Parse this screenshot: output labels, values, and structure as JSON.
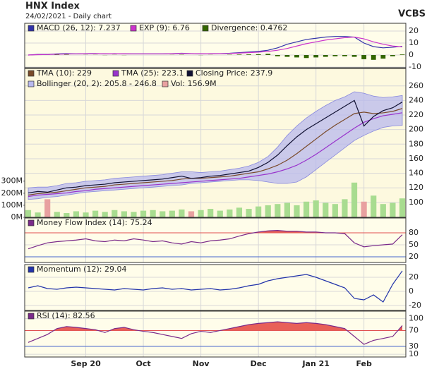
{
  "header": {
    "title": "HNX Index",
    "subtitle": "24/02/2021 - Daily chart",
    "brand": "VCBS"
  },
  "chart_data": [
    {
      "type": "line",
      "ylim": [
        -10.6,
        26.5
      ],
      "yticks": [
        20,
        10,
        0,
        -10
      ],
      "grid": true,
      "series": [
        {
          "name": "MACD (26, 12): 7.237",
          "color": "#3333aa",
          "style": "line",
          "values": [
            0,
            0.5,
            0.5,
            1,
            1.2,
            1,
            1.2,
            1.3,
            1,
            1.2,
            1,
            1,
            1,
            1,
            1,
            1.2,
            1.5,
            1.2,
            1,
            1.2,
            1.2,
            1.5,
            2,
            2.5,
            3,
            4,
            6,
            9,
            11,
            13,
            14,
            15,
            15.5,
            15.5,
            15,
            10,
            7,
            6,
            6.5,
            7.237
          ]
        },
        {
          "name": "EXP (9): 6.76",
          "color": "#cc33cc",
          "style": "line",
          "values": [
            0,
            0.3,
            0.4,
            0.7,
            0.9,
            1,
            1.1,
            1.2,
            1.1,
            1.1,
            1.1,
            1,
            1,
            1,
            1,
            1.1,
            1.3,
            1.2,
            1.1,
            1.1,
            1.2,
            1.3,
            1.6,
            2,
            2.4,
            3,
            4,
            5.5,
            7.5,
            9.5,
            11,
            12.5,
            13.5,
            14.5,
            15,
            13.5,
            11,
            9,
            7.5,
            6.76
          ]
        },
        {
          "name": "Divergence: 0.4762",
          "color": "#336600",
          "style": "bar",
          "values": [
            0,
            0.2,
            0.1,
            0.3,
            0.3,
            0,
            0.1,
            0.1,
            -0.1,
            0.1,
            -0.1,
            0,
            0,
            0,
            0,
            0.1,
            0.2,
            0,
            -0.1,
            0.1,
            0,
            0.2,
            0.4,
            0.5,
            0.6,
            1,
            -1,
            -1.5,
            -2,
            -2.5,
            -2,
            -1.5,
            -1,
            -1,
            -1.5,
            -3.5,
            -4,
            -3,
            -1,
            0.4762
          ]
        }
      ]
    },
    {
      "type": "line",
      "ylim": [
        79.5,
        284
      ],
      "yticks": [
        260,
        240,
        220,
        200,
        180,
        160,
        140,
        120,
        100
      ],
      "grid": true,
      "y2lim": [
        0,
        1235
      ],
      "y2ticks": [
        {
          "value": 300,
          "label": "300M"
        },
        {
          "value": 200,
          "label": "200M"
        },
        {
          "value": 100,
          "label": "100M"
        },
        {
          "value": 0,
          "label": "0M"
        }
      ],
      "series": [
        {
          "name": "TMA (10): 229",
          "color": "#7a4a2a",
          "style": "line",
          "values": [
            110,
            112,
            113,
            114,
            116,
            118,
            120,
            121,
            122,
            124,
            125,
            126,
            127,
            128,
            129,
            130,
            132,
            133,
            133,
            134,
            135,
            136,
            138,
            140,
            142,
            146,
            151,
            158,
            167,
            177,
            187,
            197,
            206,
            214,
            222,
            224,
            222,
            223,
            225,
            229
          ]
        },
        {
          "name": "TMA (25): 223.1",
          "color": "#9933cc",
          "style": "line",
          "values": [
            108,
            110,
            111,
            112,
            113,
            115,
            116,
            118,
            119,
            120,
            121,
            122,
            123,
            124,
            125,
            126,
            127,
            128,
            129,
            130,
            131,
            132,
            133,
            135,
            137,
            139,
            142,
            146,
            151,
            158,
            166,
            175,
            184,
            193,
            202,
            210,
            215,
            219,
            221,
            223.1
          ]
        },
        {
          "name": "Closing Price: 237.9",
          "color": "#111133",
          "style": "line",
          "values": [
            113,
            115,
            114,
            117,
            120,
            121,
            123,
            124,
            125,
            127,
            128,
            129,
            130,
            131,
            132,
            134,
            136,
            133,
            134,
            136,
            137,
            139,
            141,
            143,
            148,
            155,
            165,
            178,
            190,
            200,
            208,
            216,
            224,
            232,
            240,
            205,
            218,
            226,
            230,
            237.9
          ]
        },
        {
          "name": "Bollinger (20, 2): 205.8 - 246.8",
          "color": "#b8b8ee",
          "style": "band",
          "upper": [
            120,
            121,
            121,
            123,
            126,
            127,
            129,
            130,
            131,
            133,
            134,
            135,
            136,
            137,
            138,
            140,
            142,
            142,
            141,
            142,
            143,
            145,
            147,
            150,
            155,
            163,
            176,
            192,
            205,
            216,
            225,
            233,
            240,
            245,
            252,
            250,
            246,
            244,
            245,
            246.8
          ],
          "lower": [
            104,
            105,
            107,
            108,
            110,
            112,
            114,
            115,
            116,
            117,
            118,
            119,
            120,
            121,
            122,
            123,
            124,
            126,
            127,
            128,
            129,
            130,
            131,
            131,
            130,
            128,
            126,
            126,
            128,
            135,
            145,
            155,
            165,
            175,
            185,
            192,
            198,
            203,
            205,
            205.8
          ]
        },
        {
          "name": "Vol: 156.9M",
          "color": "#e8a0a0",
          "up_color": "#a8dc90",
          "style": "volume",
          "axis": "y2",
          "values": [
            60,
            40,
            150,
            45,
            35,
            50,
            40,
            55,
            45,
            60,
            50,
            45,
            55,
            60,
            50,
            55,
            65,
            50,
            60,
            70,
            55,
            65,
            80,
            70,
            90,
            100,
            110,
            120,
            100,
            130,
            140,
            120,
            110,
            150,
            288,
            130,
            180,
            110,
            120,
            156.9
          ]
        }
      ]
    },
    {
      "type": "line",
      "ylim": [
        6,
        117
      ],
      "yticks": [
        80,
        50,
        20
      ],
      "grid": true,
      "upper_line": 80,
      "upper_color": "#e05050",
      "lower_line": 20,
      "lower_color": "#4466cc",
      "fill_above": 80,
      "fill_color": "#e86058",
      "series": [
        {
          "name": "Money Flow Index (14): 75.24",
          "color": "#7a2a8a",
          "style": "line",
          "values": [
            40,
            48,
            55,
            58,
            60,
            62,
            65,
            60,
            58,
            62,
            60,
            65,
            62,
            58,
            60,
            55,
            52,
            58,
            55,
            60,
            62,
            65,
            72,
            78,
            82,
            85,
            86,
            84,
            84,
            82,
            82,
            80,
            80,
            78,
            55,
            45,
            48,
            50,
            52,
            75.24
          ]
        }
      ]
    },
    {
      "type": "line",
      "ylim": [
        -27,
        38
      ],
      "yticks": [
        20,
        0,
        -20
      ],
      "grid": true,
      "series": [
        {
          "name": "Momentum (12): 29.04",
          "color": "#2233aa",
          "style": "line",
          "values": [
            5,
            8,
            4,
            3,
            5,
            6,
            5,
            4,
            3,
            2,
            4,
            3,
            2,
            4,
            5,
            3,
            4,
            2,
            3,
            4,
            2,
            3,
            5,
            8,
            10,
            15,
            18,
            20,
            22,
            24,
            20,
            15,
            10,
            5,
            -10,
            -12,
            -5,
            -15,
            10,
            29.04
          ]
        }
      ]
    },
    {
      "type": "line",
      "ylim": [
        3,
        119
      ],
      "yticks": [
        100,
        70,
        30,
        10
      ],
      "grid": true,
      "upper_line": 70,
      "upper_color": "#e05050",
      "lower_line": 30,
      "lower_color": "#4466cc",
      "fill_above": 70,
      "fill_color": "#e86058",
      "categories": [
        null,
        null,
        null,
        null,
        null,
        null,
        "Sep 20",
        null,
        null,
        null,
        null,
        null,
        "Oct",
        null,
        null,
        null,
        null,
        null,
        "Nov",
        null,
        null,
        null,
        null,
        null,
        "Dec",
        null,
        null,
        null,
        null,
        null,
        "Jan 21",
        null,
        null,
        null,
        null,
        "Feb",
        null,
        null,
        null,
        null
      ],
      "series": [
        {
          "name": "RSI (14): 82.56",
          "color": "#7a2a8a",
          "style": "line",
          "values": [
            40,
            50,
            60,
            75,
            80,
            78,
            75,
            72,
            65,
            75,
            78,
            72,
            68,
            65,
            60,
            55,
            50,
            62,
            68,
            65,
            70,
            75,
            80,
            85,
            88,
            90,
            92,
            90,
            88,
            90,
            88,
            85,
            80,
            75,
            55,
            35,
            45,
            50,
            55,
            82.56
          ]
        }
      ]
    }
  ]
}
